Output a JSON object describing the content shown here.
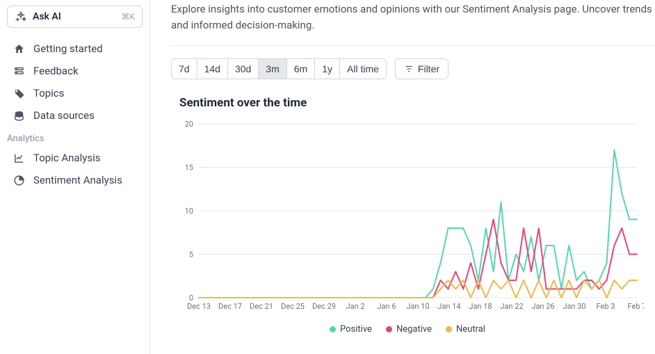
{
  "sidebar": {
    "ask_ai": {
      "label": "Ask AI",
      "shortcut": "⌘K"
    },
    "items": [
      {
        "label": "Getting started"
      },
      {
        "label": "Feedback"
      },
      {
        "label": "Topics"
      },
      {
        "label": "Data sources"
      }
    ],
    "analytics_label": "Analytics",
    "analytics_items": [
      {
        "label": "Topic Analysis"
      },
      {
        "label": "Sentiment Analysis"
      }
    ]
  },
  "main": {
    "intro": "Explore insights into customer emotions and opinions with our Sentiment Analysis page. Uncover trends and informed decision-making.",
    "ranges": [
      "7d",
      "14d",
      "30d",
      "3m",
      "6m",
      "1y",
      "All time"
    ],
    "active_range_index": 3,
    "filter_label": "Filter",
    "chart": {
      "title": "Sentiment over the time",
      "type": "line",
      "ylim": [
        0,
        20
      ],
      "yticks": [
        0,
        5,
        10,
        15,
        20
      ],
      "x_labels": [
        "Dec 13",
        "Dec 17",
        "Dec 21",
        "Dec 25",
        "Dec 29",
        "Jan 2",
        "Jan 6",
        "Jan 10",
        "Jan 14",
        "Jan 18",
        "Jan 22",
        "Jan 26",
        "Jan 30",
        "Feb 3",
        "Feb 7"
      ],
      "grid_color": "#e5e7eb",
      "axis_text_color": "#6b7280",
      "axis_font_size": 11,
      "background_color": "#ffffff",
      "line_width": 2,
      "series": [
        {
          "name": "Positive",
          "color": "#55d6b0",
          "values": [
            0,
            0,
            0,
            0,
            0,
            0,
            0,
            0,
            0,
            0,
            0,
            0,
            0,
            0,
            0,
            0,
            0,
            0,
            0,
            0,
            0,
            0,
            0,
            0,
            0,
            0,
            0,
            0,
            0,
            0,
            0,
            1,
            4,
            8,
            8,
            8,
            6,
            2,
            8,
            3,
            11,
            2,
            5,
            3,
            7,
            2,
            6,
            6,
            1,
            6,
            2,
            3,
            1,
            2,
            4,
            17,
            12,
            9,
            9
          ]
        },
        {
          "name": "Negative",
          "color": "#ec4176",
          "values": [
            0,
            0,
            0,
            0,
            0,
            0,
            0,
            0,
            0,
            0,
            0,
            0,
            0,
            0,
            0,
            0,
            0,
            0,
            0,
            0,
            0,
            0,
            0,
            0,
            0,
            0,
            0,
            0,
            0,
            0,
            0,
            0,
            2,
            1,
            3,
            1,
            4,
            1,
            5,
            9,
            4,
            2,
            2,
            8,
            3,
            8,
            1,
            1,
            1,
            1,
            1,
            2,
            2,
            1,
            2,
            6,
            8,
            5,
            5
          ]
        },
        {
          "name": "Neutral",
          "color": "#f4b73f",
          "values": [
            0,
            0,
            0,
            0,
            0,
            0,
            0,
            0,
            0,
            0,
            0,
            0,
            0,
            0,
            0,
            0,
            0,
            0,
            0,
            0,
            0,
            0,
            0,
            0,
            0,
            0,
            0,
            0,
            0,
            0,
            0,
            0,
            1,
            2,
            1,
            2,
            0,
            2,
            0,
            2,
            1,
            2,
            0,
            2,
            0,
            2,
            0,
            2,
            0,
            2,
            0,
            2,
            1,
            2,
            0,
            2,
            1,
            2,
            2
          ]
        }
      ],
      "legend": [
        "Positive",
        "Negative",
        "Neutral"
      ]
    }
  }
}
